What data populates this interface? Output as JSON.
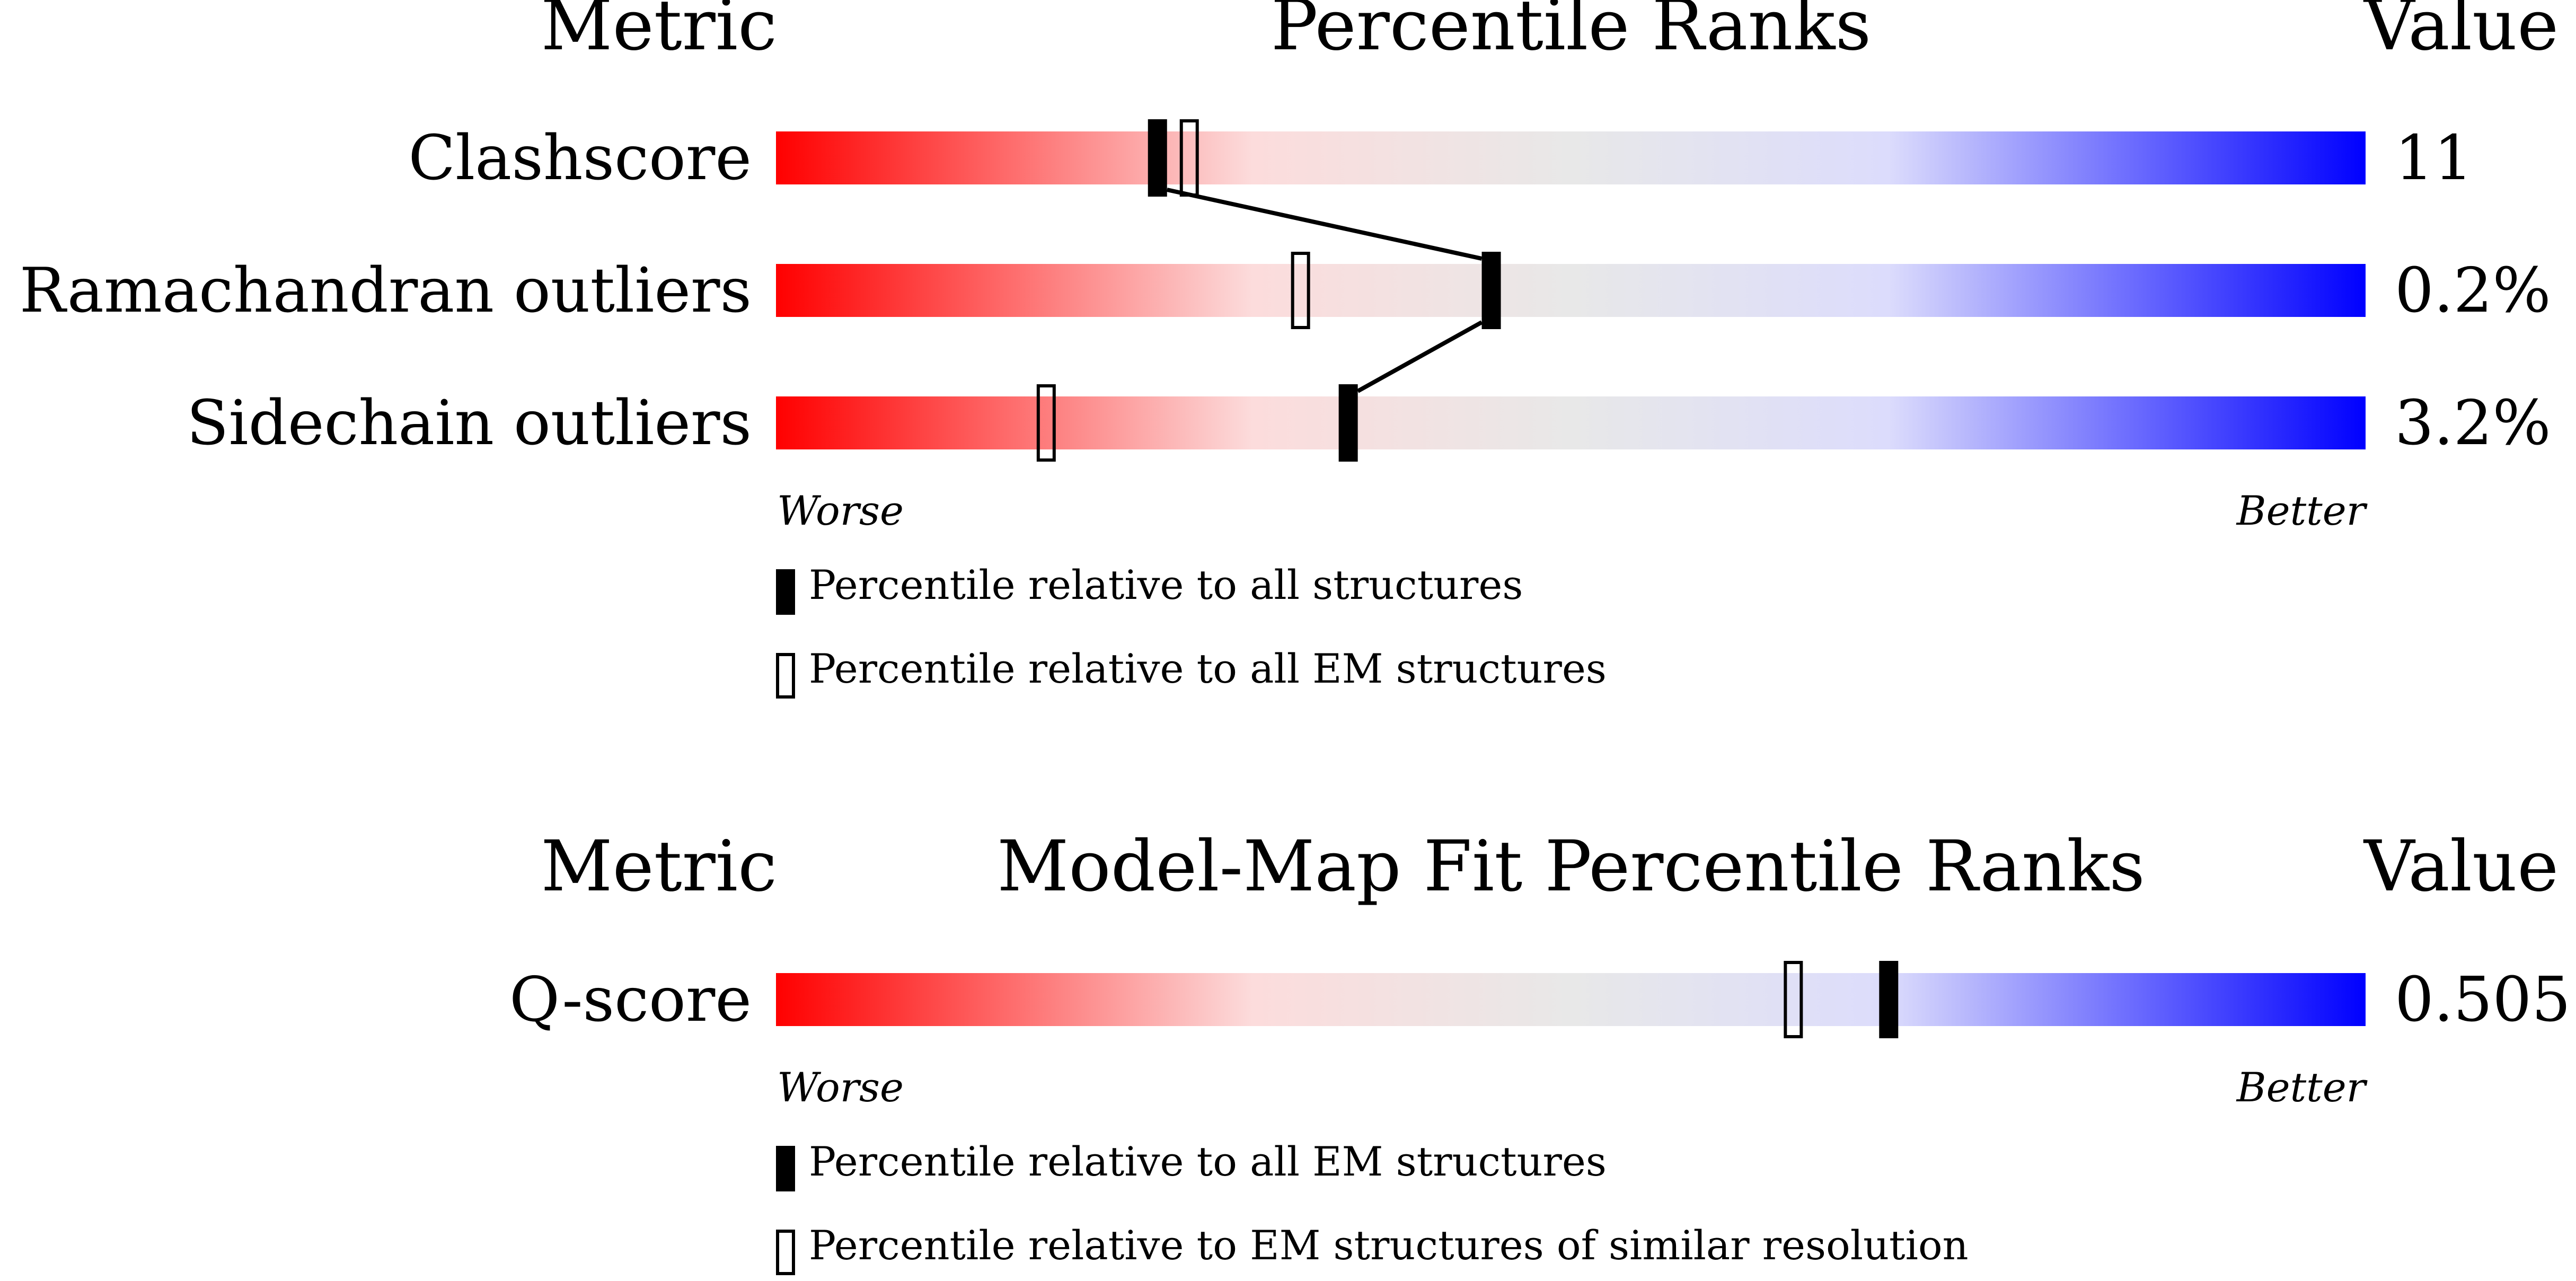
{
  "colors": {
    "worse": "#ff0000",
    "mid_red": "#fcdcdc",
    "neutral": "#e8e8e8",
    "mid_blue": "#dcdcfc",
    "better": "#0000ff",
    "marker": "#000000"
  },
  "chart_data": [
    {
      "type": "percentile-rank-bars",
      "headers": {
        "metric": "Metric",
        "title": "Percentile Ranks",
        "value": "Value"
      },
      "x_scale": {
        "min": 0,
        "max": 100,
        "left_label": "Worse",
        "right_label": "Better"
      },
      "rows": [
        {
          "metric": "Clashscore",
          "value": "11",
          "percentile_all": 24,
          "percentile_subset": 26
        },
        {
          "metric": "Ramachandran outliers",
          "value": "0.2%",
          "percentile_all": 45,
          "percentile_subset": 33
        },
        {
          "metric": "Sidechain outliers",
          "value": "3.2%",
          "percentile_all": 36,
          "percentile_subset": 17
        }
      ],
      "connect_filled_markers": true,
      "legend": [
        {
          "marker": "filled",
          "label": "Percentile relative to all structures"
        },
        {
          "marker": "hollow",
          "label": "Percentile relative to all EM structures"
        }
      ]
    },
    {
      "type": "percentile-rank-bars",
      "headers": {
        "metric": "Metric",
        "title": "Model-Map Fit Percentile Ranks",
        "value": "Value"
      },
      "x_scale": {
        "min": 0,
        "max": 100,
        "left_label": "Worse",
        "right_label": "Better"
      },
      "rows": [
        {
          "metric": "Q-score",
          "value": "0.505",
          "percentile_all": 70,
          "percentile_subset": 64
        }
      ],
      "connect_filled_markers": false,
      "legend": [
        {
          "marker": "filled",
          "label": "Percentile relative to all EM structures"
        },
        {
          "marker": "hollow",
          "label": "Percentile relative to EM structures of similar resolution"
        }
      ]
    }
  ]
}
